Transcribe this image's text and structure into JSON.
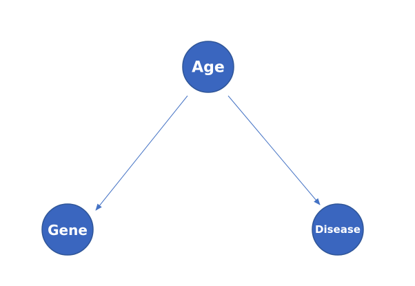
{
  "diagram": {
    "node_color": "#3a66bf",
    "node_stroke": "#2f5597",
    "edge_color": "#4472c4",
    "nodes": [
      {
        "id": "age",
        "label": "Age"
      },
      {
        "id": "gene",
        "label": "Gene"
      },
      {
        "id": "disease",
        "label": "Disease"
      }
    ],
    "edges": [
      {
        "from": "age",
        "to": "gene"
      },
      {
        "from": "age",
        "to": "disease"
      }
    ]
  }
}
